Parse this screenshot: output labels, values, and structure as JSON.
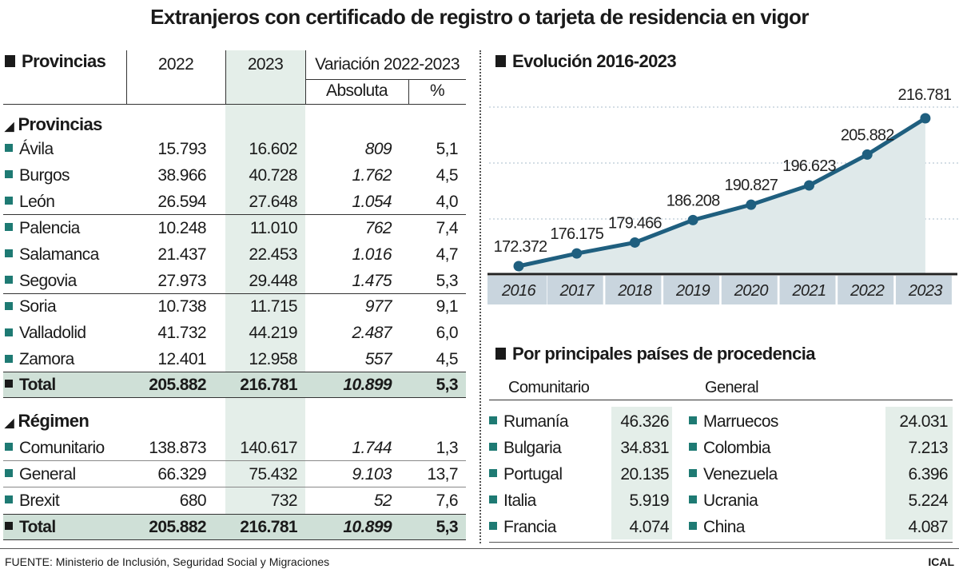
{
  "title": "Extranjeros con certificado de registro o tarjeta de residencia en vigor",
  "table": {
    "header": {
      "label": "Provincias",
      "y2022": "2022",
      "y2023": "2023",
      "variation": "Variación 2022-2023",
      "abs": "Absoluta",
      "pct": "%"
    },
    "section1": "Provincias",
    "provinces": [
      {
        "name": "Ávila",
        "v2022": "15.793",
        "v2023": "16.602",
        "abs": "809",
        "pct": "5,1"
      },
      {
        "name": "Burgos",
        "v2022": "38.966",
        "v2023": "40.728",
        "abs": "1.762",
        "pct": "4,5"
      },
      {
        "name": "León",
        "v2022": "26.594",
        "v2023": "27.648",
        "abs": "1.054",
        "pct": "4,0"
      },
      {
        "name": "Palencia",
        "v2022": "10.248",
        "v2023": "11.010",
        "abs": "762",
        "pct": "7,4"
      },
      {
        "name": "Salamanca",
        "v2022": "21.437",
        "v2023": "22.453",
        "abs": "1.016",
        "pct": "4,7"
      },
      {
        "name": "Segovia",
        "v2022": "27.973",
        "v2023": "29.448",
        "abs": "1.475",
        "pct": "5,3"
      },
      {
        "name": "Soria",
        "v2022": "10.738",
        "v2023": "11.715",
        "abs": "977",
        "pct": "9,1"
      },
      {
        "name": "Valladolid",
        "v2022": "41.732",
        "v2023": "44.219",
        "abs": "2.487",
        "pct": "6,0"
      },
      {
        "name": "Zamora",
        "v2022": "12.401",
        "v2023": "12.958",
        "abs": "557",
        "pct": "4,5"
      }
    ],
    "total1": {
      "name": "Total",
      "v2022": "205.882",
      "v2023": "216.781",
      "abs": "10.899",
      "pct": "5,3"
    },
    "section2": "Régimen",
    "regimes": [
      {
        "name": "Comunitario",
        "v2022": "138.873",
        "v2023": "140.617",
        "abs": "1.744",
        "pct": "1,3"
      },
      {
        "name": "General",
        "v2022": "66.329",
        "v2023": "75.432",
        "abs": "9.103",
        "pct": "13,7"
      },
      {
        "name": "Brexit",
        "v2022": "680",
        "v2023": "732",
        "abs": "52",
        "pct": "7,6"
      }
    ],
    "total2": {
      "name": "Total",
      "v2022": "205.882",
      "v2023": "216.781",
      "abs": "10.899",
      "pct": "5,3"
    }
  },
  "chart_data": {
    "type": "area",
    "title": "Evolución 2016-2023",
    "categories": [
      "2016",
      "2017",
      "2018",
      "2019",
      "2020",
      "2021",
      "2022",
      "2023"
    ],
    "values": [
      172372,
      176175,
      179466,
      186208,
      190827,
      196623,
      205882,
      216781
    ],
    "labels": [
      "172.372",
      "176.175",
      "179.466",
      "186.208",
      "190.827",
      "196.623",
      "205.882",
      "216.781"
    ],
    "grid": true,
    "colors": {
      "line": "#1f5f7f",
      "fill": "#dfe9ea",
      "axis_band": "#c9d5de"
    }
  },
  "countries": {
    "title": "Por principales países de procedencia",
    "col1": "Comunitario",
    "col2": "General",
    "comunitario": [
      {
        "name": "Rumanía",
        "value": "46.326"
      },
      {
        "name": "Bulgaria",
        "value": "34.831"
      },
      {
        "name": "Portugal",
        "value": "20.135"
      },
      {
        "name": "Italia",
        "value": "5.919"
      },
      {
        "name": "Francia",
        "value": "4.074"
      }
    ],
    "general": [
      {
        "name": "Marruecos",
        "value": "24.031"
      },
      {
        "name": "Colombia",
        "value": "7.213"
      },
      {
        "name": "Venezuela",
        "value": "6.396"
      },
      {
        "name": "Ucrania",
        "value": "5.224"
      },
      {
        "name": "China",
        "value": "4.087"
      }
    ]
  },
  "footer": {
    "source": "FUENTE: Ministerio de Inclusión, Seguridad Social y Migraciones",
    "brand": "ICAL"
  }
}
